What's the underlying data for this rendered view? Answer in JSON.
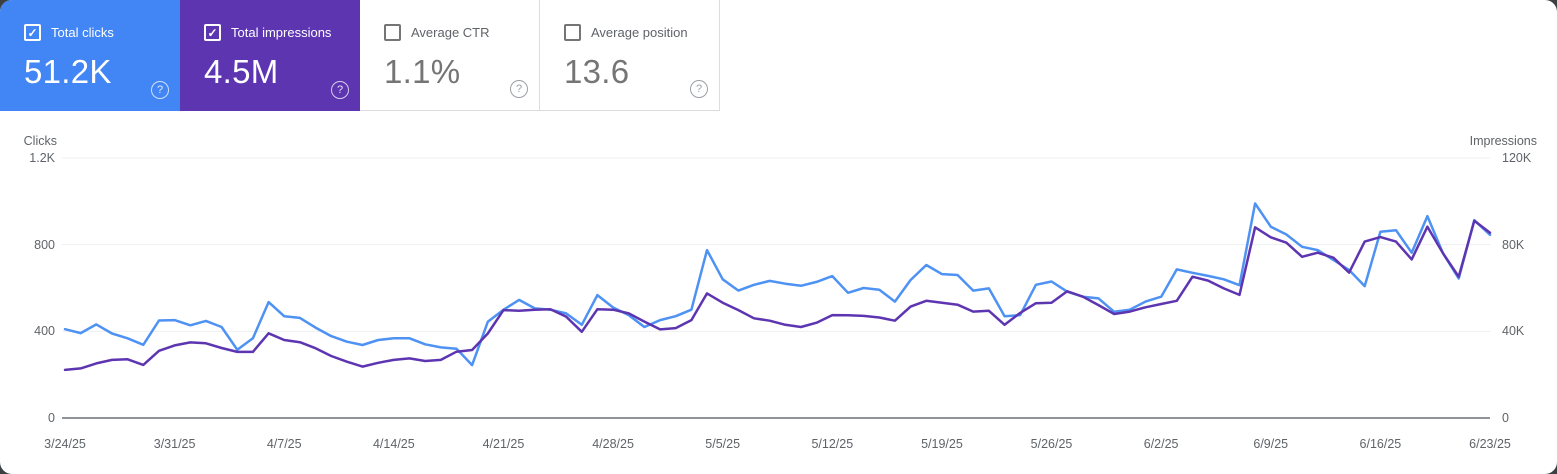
{
  "icons": {
    "check": "✓",
    "help": "?"
  },
  "colors": {
    "clicks_card": "#4285f4",
    "impressions_card": "#5e35b1",
    "clicks_line": "#4e92f3",
    "impressions_line": "#5e35b1",
    "grid": "#edeff1",
    "axis_zero": "#8f949a"
  },
  "cards": [
    {
      "label": "Total clicks",
      "value": "51.2K",
      "checked": true,
      "bg": "#4285f4",
      "style": "colored"
    },
    {
      "label": "Total impressions",
      "value": "4.5M",
      "checked": true,
      "bg": "#5e35b1",
      "style": "colored"
    },
    {
      "label": "Average CTR",
      "value": "1.1%",
      "checked": false,
      "bg": "#ffffff",
      "style": "white"
    },
    {
      "label": "Average position",
      "value": "13.6",
      "checked": false,
      "bg": "#ffffff",
      "style": "white"
    }
  ],
  "chart_data": {
    "type": "line",
    "left_axis": {
      "title": "Clicks",
      "ticks": [
        "0",
        "400",
        "800",
        "1.2K"
      ],
      "tick_values": [
        0,
        400,
        800,
        1200
      ],
      "max": 1200
    },
    "right_axis": {
      "title": "Impressions",
      "ticks": [
        "0",
        "40K",
        "80K",
        "120K"
      ],
      "tick_values": [
        0,
        40000,
        80000,
        120000
      ],
      "max": 120000
    },
    "x_ticks": [
      "3/24/25",
      "3/31/25",
      "4/7/25",
      "4/14/25",
      "4/21/25",
      "4/28/25",
      "5/5/25",
      "5/12/25",
      "5/19/25",
      "5/26/25",
      "6/2/25",
      "6/9/25",
      "6/16/25",
      "6/23/25"
    ],
    "x_tick_interval_days": 7,
    "grid": true,
    "series": [
      {
        "name": "Total clicks",
        "axis": "left",
        "color": "#4e92f3",
        "values": [
          410,
          392,
          432,
          390,
          368,
          338,
          450,
          452,
          428,
          448,
          420,
          315,
          368,
          535,
          470,
          462,
          417,
          378,
          352,
          337,
          360,
          368,
          368,
          340,
          326,
          320,
          244,
          444,
          500,
          545,
          506,
          500,
          483,
          430,
          567,
          510,
          475,
          420,
          452,
          470,
          500,
          775,
          640,
          588,
          615,
          633,
          620,
          610,
          628,
          655,
          578,
          600,
          592,
          537,
          637,
          706,
          664,
          660,
          588,
          598,
          470,
          475,
          615,
          630,
          583,
          560,
          552,
          490,
          500,
          537,
          560,
          686,
          670,
          656,
          640,
          613,
          990,
          883,
          847,
          790,
          775,
          729,
          683,
          609,
          860,
          867,
          763,
          932,
          760,
          644,
          913,
          845
        ]
      },
      {
        "name": "Total impressions",
        "axis": "right",
        "color": "#5e35b1",
        "values": [
          22200,
          22900,
          25200,
          26800,
          27100,
          24500,
          31000,
          33500,
          34900,
          34500,
          32300,
          30500,
          30500,
          39100,
          36000,
          35000,
          32200,
          28600,
          26000,
          23700,
          25500,
          26800,
          27500,
          26300,
          26800,
          30600,
          31400,
          39000,
          49800,
          49500,
          50000,
          50200,
          46800,
          39800,
          50200,
          50000,
          48300,
          44500,
          40900,
          41500,
          45200,
          57500,
          53200,
          49800,
          46000,
          44900,
          43000,
          42000,
          44000,
          47500,
          47400,
          47100,
          46400,
          44900,
          51400,
          54100,
          53200,
          52300,
          49100,
          49500,
          43000,
          48500,
          53000,
          53200,
          58500,
          56000,
          52100,
          48000,
          49100,
          51100,
          52600,
          54100,
          65200,
          63400,
          59800,
          56800,
          88000,
          83400,
          80900,
          74400,
          76300,
          74000,
          67100,
          81400,
          83500,
          81400,
          73200,
          88300,
          76000,
          65200,
          91000,
          85500
        ]
      }
    ]
  }
}
